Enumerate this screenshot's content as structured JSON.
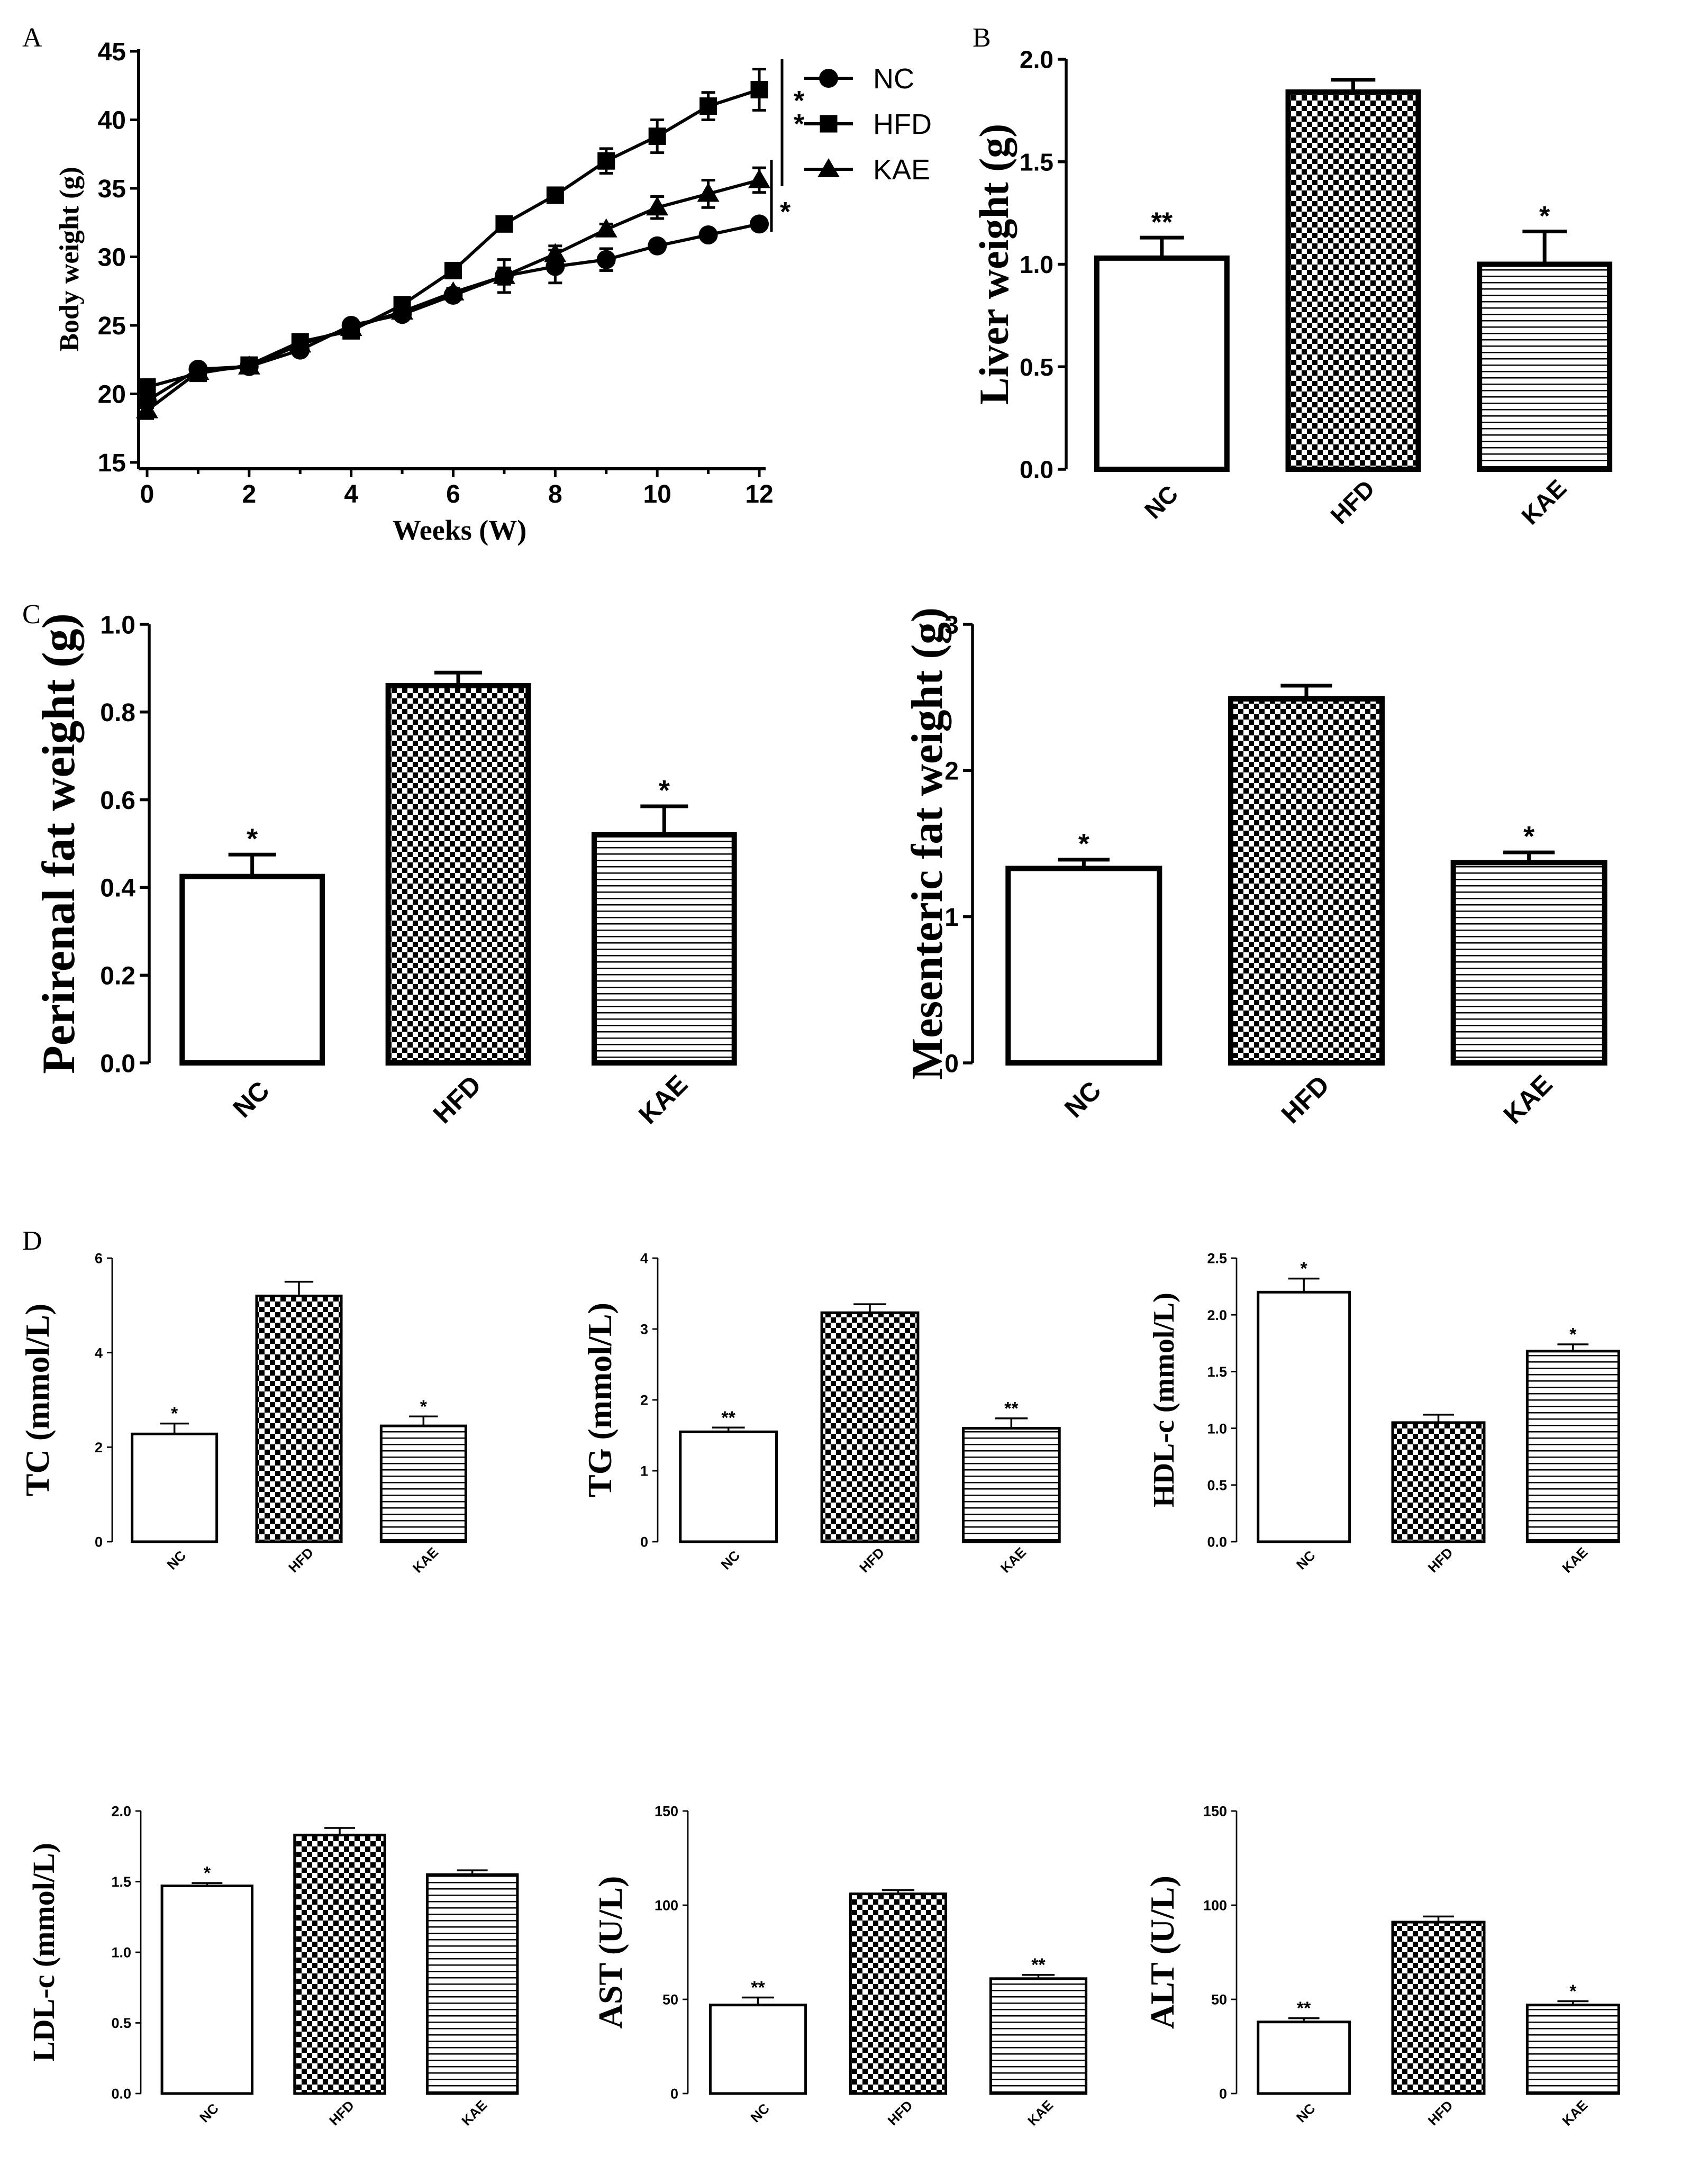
{
  "panel_letters": {
    "a": "A",
    "b": "B",
    "c": "C",
    "d": "D"
  },
  "patterns": {
    "NC": "blank",
    "HFD": "checker",
    "KAE": "horizontal-lines"
  },
  "chart_data": [
    {
      "id": "A",
      "type": "line",
      "title": "",
      "xlabel": "Weeks (W)",
      "ylabel": "Body weight (g)",
      "xlim": [
        0,
        12
      ],
      "ylim": [
        15,
        45
      ],
      "x_ticks": [
        0,
        2,
        4,
        6,
        8,
        10,
        12
      ],
      "y_ticks": [
        15,
        20,
        25,
        30,
        35,
        40,
        45
      ],
      "x": [
        0,
        1,
        2,
        3,
        4,
        5,
        6,
        7,
        8,
        9,
        10,
        11,
        12
      ],
      "legend_position": "top-right",
      "series": [
        {
          "name": "NC",
          "marker": "circle",
          "values": [
            19.5,
            21.8,
            22.0,
            23.2,
            25.0,
            25.8,
            27.2,
            28.6,
            29.3,
            29.8,
            30.8,
            31.6,
            32.4
          ],
          "errors": [
            0.5,
            0.3,
            0.3,
            0.3,
            0.3,
            0.3,
            0.3,
            0.6,
            1.2,
            0.8,
            0.3,
            0.3,
            0.3
          ]
        },
        {
          "name": "HFD",
          "marker": "square",
          "values": [
            20.5,
            21.5,
            22.1,
            23.8,
            24.6,
            26.5,
            29.0,
            32.4,
            34.5,
            37.0,
            38.8,
            41.0,
            42.2
          ],
          "errors": [
            0.5,
            0.3,
            0.3,
            0.3,
            0.3,
            0.3,
            0.4,
            0.4,
            0.4,
            0.9,
            1.2,
            1.0,
            1.5
          ]
        },
        {
          "name": "KAE",
          "marker": "triangle",
          "values": [
            18.8,
            21.6,
            22.0,
            23.6,
            24.8,
            26.0,
            27.4,
            28.6,
            30.2,
            32.0,
            33.6,
            34.6,
            35.6
          ],
          "errors": [
            0.6,
            0.3,
            0.3,
            0.3,
            0.3,
            0.3,
            0.3,
            1.2,
            0.6,
            0.4,
            0.8,
            1.0,
            0.9
          ]
        }
      ],
      "annotations": [
        {
          "text": "*",
          "between": [
            "HFD",
            "NC"
          ]
        },
        {
          "text": "*",
          "between": [
            "HFD",
            "NC"
          ]
        },
        {
          "text": "*",
          "between": [
            "KAE",
            "NC"
          ]
        }
      ]
    },
    {
      "id": "B",
      "type": "bar",
      "title": "",
      "xlabel": "",
      "ylabel": "Liver weight (g)",
      "ylim": [
        0,
        2.0
      ],
      "y_ticks": [
        "0.0",
        "0.5",
        "1.0",
        "1.5",
        "2.0"
      ],
      "categories": [
        "NC",
        "HFD",
        "KAE"
      ],
      "values": [
        1.03,
        1.84,
        1.0
      ],
      "errors": [
        0.1,
        0.06,
        0.16
      ],
      "labels": [
        "**",
        "",
        "*"
      ]
    },
    {
      "id": "C1",
      "type": "bar",
      "title": "",
      "xlabel": "",
      "ylabel": "Perirenal fat weight (g)",
      "ylim": [
        0,
        1.0
      ],
      "y_ticks": [
        "0.0",
        "0.2",
        "0.4",
        "0.6",
        "0.8",
        "1.0"
      ],
      "categories": [
        "NC",
        "HFD",
        "KAE"
      ],
      "values": [
        0.425,
        0.86,
        0.52
      ],
      "errors": [
        0.05,
        0.03,
        0.065
      ],
      "labels": [
        "*",
        "",
        "*"
      ]
    },
    {
      "id": "C2",
      "type": "bar",
      "title": "",
      "xlabel": "",
      "ylabel": "Mesenteric fat weight (g)",
      "ylim": [
        0,
        3
      ],
      "y_ticks": [
        "0",
        "1",
        "2",
        "3"
      ],
      "categories": [
        "NC",
        "HFD",
        "KAE"
      ],
      "values": [
        1.33,
        2.49,
        1.37
      ],
      "errors": [
        0.06,
        0.09,
        0.07
      ],
      "labels": [
        "*",
        "",
        "*"
      ]
    },
    {
      "id": "D1",
      "type": "bar",
      "title": "",
      "xlabel": "",
      "ylabel": "TC (mmol/L)",
      "ylim": [
        0,
        6
      ],
      "y_ticks": [
        "0",
        "2",
        "4",
        "6"
      ],
      "categories": [
        "NC",
        "HFD",
        "KAE"
      ],
      "values": [
        2.28,
        5.2,
        2.45
      ],
      "errors": [
        0.22,
        0.3,
        0.2
      ],
      "labels": [
        "*",
        "",
        "*"
      ]
    },
    {
      "id": "D2",
      "type": "bar",
      "title": "",
      "xlabel": "",
      "ylabel": "TG (mmol/L)",
      "ylim": [
        0,
        4
      ],
      "y_ticks": [
        "0",
        "1",
        "2",
        "3",
        "4"
      ],
      "categories": [
        "NC",
        "HFD",
        "KAE"
      ],
      "values": [
        1.55,
        3.23,
        1.6
      ],
      "errors": [
        0.06,
        0.12,
        0.14
      ],
      "labels": [
        "**",
        "",
        "**"
      ]
    },
    {
      "id": "D3",
      "type": "bar",
      "title": "",
      "xlabel": "",
      "ylabel": "HDL-c (mmol/L)",
      "ylim": [
        0,
        2.5
      ],
      "y_ticks": [
        "0.0",
        "0.5",
        "1.0",
        "1.5",
        "2.0",
        "2.5"
      ],
      "categories": [
        "NC",
        "HFD",
        "KAE"
      ],
      "values": [
        2.2,
        1.05,
        1.68
      ],
      "errors": [
        0.12,
        0.07,
        0.06
      ],
      "labels": [
        "*",
        "",
        "*"
      ]
    },
    {
      "id": "D4",
      "type": "bar",
      "title": "",
      "xlabel": "",
      "ylabel": "LDL-c (mmol/L)",
      "ylim": [
        0,
        2.0
      ],
      "y_ticks": [
        "0.0",
        "0.5",
        "1.0",
        "1.5",
        "2.0"
      ],
      "categories": [
        "NC",
        "HFD",
        "KAE"
      ],
      "values": [
        1.47,
        1.83,
        1.55
      ],
      "errors": [
        0.02,
        0.05,
        0.03
      ],
      "labels": [
        "*",
        "",
        ""
      ]
    },
    {
      "id": "D5",
      "type": "bar",
      "title": "",
      "xlabel": "",
      "ylabel": "AST (U/L)",
      "ylim": [
        0,
        150
      ],
      "y_ticks": [
        "0",
        "50",
        "100",
        "150"
      ],
      "categories": [
        "NC",
        "HFD",
        "KAE"
      ],
      "values": [
        47,
        106,
        61
      ],
      "errors": [
        4,
        2,
        2
      ],
      "labels": [
        "**",
        "",
        "**"
      ]
    },
    {
      "id": "D6",
      "type": "bar",
      "title": "",
      "xlabel": "",
      "ylabel": "ALT (U/L)",
      "ylim": [
        0,
        150
      ],
      "y_ticks": [
        "0",
        "50",
        "100",
        "150"
      ],
      "categories": [
        "NC",
        "HFD",
        "KAE"
      ],
      "values": [
        38,
        91,
        47
      ],
      "errors": [
        2,
        3,
        2
      ],
      "labels": [
        "**",
        "",
        "*"
      ]
    }
  ]
}
